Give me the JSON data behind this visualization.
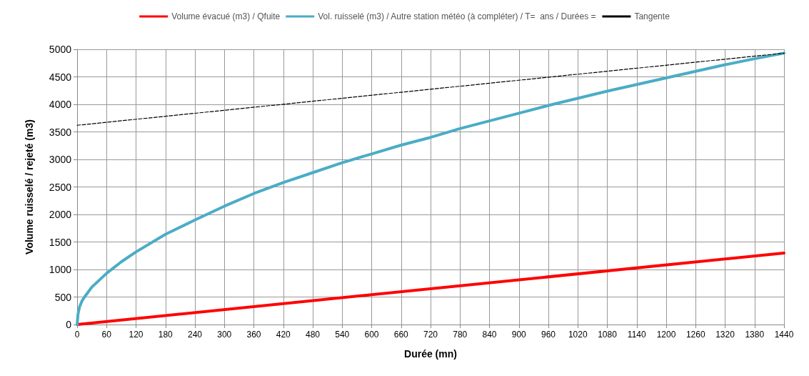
{
  "chart_data": {
    "type": "line",
    "xlabel": "Durée (mn)",
    "ylabel": "Volume ruisselé / rejeté (m3)",
    "xlim": [
      0,
      1440
    ],
    "xticks": [
      0,
      60,
      120,
      180,
      240,
      300,
      360,
      420,
      480,
      540,
      600,
      660,
      720,
      780,
      840,
      900,
      960,
      1020,
      1080,
      1140,
      1200,
      1260,
      1320,
      1380,
      1440
    ],
    "ylim": [
      0,
      5000
    ],
    "yticks": [
      0,
      500,
      1000,
      1500,
      2000,
      2500,
      3000,
      3500,
      4000,
      4500,
      5000
    ],
    "grid": true,
    "legend": "top",
    "marker": "none",
    "series": [
      {
        "name": "Volume évacué (m3) / Qfuite",
        "color": "#ff0000",
        "line_style": "solid",
        "x": [
          0,
          1440
        ],
        "values": [
          0,
          1300
        ]
      },
      {
        "name": "Vol. ruisselé (m3) / Autre station météo (à compléter) / T=  ans / Durées =",
        "color": "#4bacc6",
        "line_style": "solid",
        "x": [
          0,
          2,
          5,
          10,
          15,
          30,
          60,
          90,
          120,
          180,
          240,
          300,
          360,
          420,
          480,
          540,
          600,
          660,
          720,
          780,
          840,
          900,
          960,
          1020,
          1080,
          1140,
          1200,
          1260,
          1320,
          1380,
          1440
        ],
        "values": [
          0,
          200,
          320,
          430,
          500,
          680,
          930,
          1140,
          1320,
          1640,
          1900,
          2150,
          2380,
          2580,
          2760,
          2940,
          3100,
          3260,
          3400,
          3560,
          3700,
          3840,
          3980,
          4110,
          4240,
          4360,
          4480,
          4600,
          4720,
          4830,
          4930
        ]
      },
      {
        "name": "Tangente",
        "color": "#000000",
        "line_style": "dashed",
        "x": [
          0,
          1440
        ],
        "values": [
          3620,
          4930
        ]
      }
    ]
  }
}
